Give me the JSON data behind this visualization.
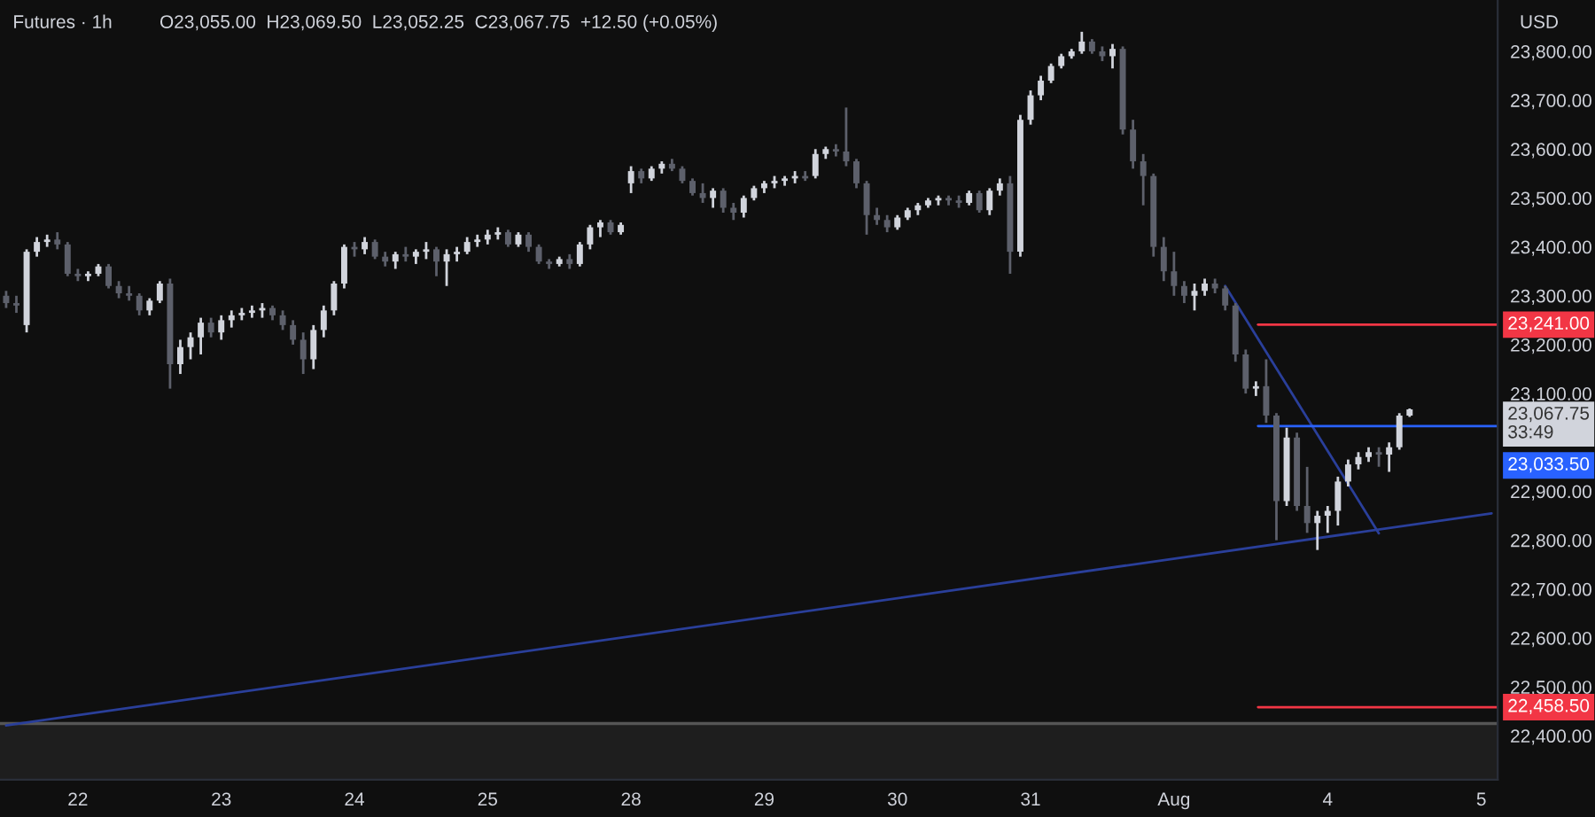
{
  "chart_data": {
    "type": "candlestick",
    "title": "Futures · 1h",
    "annotations": [
      "O23,055.00  H23,069.50  L23,052.25  C23,067.75  +12.50 (+0.05%)",
      "USD",
      "23,067.75",
      "33:49"
    ],
    "categories": [
      null,
      null,
      null,
      null,
      null,
      null,
      null,
      "22",
      null,
      null,
      null,
      null,
      null,
      null,
      null,
      null,
      null,
      null,
      null,
      null,
      null,
      "23",
      null,
      null,
      null,
      null,
      null,
      null,
      null,
      null,
      null,
      null,
      null,
      null,
      "24",
      null,
      null,
      null,
      null,
      null,
      null,
      null,
      null,
      null,
      null,
      null,
      null,
      "25",
      null,
      null,
      null,
      null,
      null,
      null,
      null,
      null,
      null,
      null,
      null,
      null,
      null,
      "28",
      null,
      null,
      null,
      null,
      null,
      null,
      null,
      null,
      null,
      null,
      null,
      null,
      "29",
      null,
      null,
      null,
      null,
      null,
      null,
      null,
      null,
      null,
      null,
      null,
      null,
      "30",
      null,
      null,
      null,
      null,
      null,
      null,
      null,
      null,
      null,
      null,
      null,
      null,
      "31",
      null,
      null,
      null,
      null,
      null,
      null,
      null,
      null,
      null,
      null,
      null,
      null,
      null,
      "Aug",
      null,
      null,
      null,
      null,
      null,
      null,
      null,
      null,
      null,
      null,
      null,
      null,
      null,
      null,
      "4",
      null,
      null,
      null,
      null,
      null,
      null,
      null,
      null,
      null,
      null,
      null,
      null,
      null,
      null,
      "5",
      null
    ],
    "ohlc": [
      [
        23300,
        23310,
        23275,
        23285
      ],
      [
        23285,
        23300,
        23265,
        23280
      ],
      [
        23240,
        23395,
        23225,
        23390
      ],
      [
        23390,
        23420,
        23380,
        23410
      ],
      [
        23410,
        23425,
        23400,
        23415
      ],
      [
        23415,
        23430,
        23395,
        23405
      ],
      [
        23405,
        23410,
        23340,
        23345
      ],
      [
        23345,
        23355,
        23330,
        23340
      ],
      [
        23340,
        23350,
        23330,
        23345
      ],
      [
        23345,
        23365,
        23340,
        23360
      ],
      [
        23360,
        23365,
        23315,
        23320
      ],
      [
        23320,
        23330,
        23295,
        23305
      ],
      [
        23305,
        23320,
        23290,
        23300
      ],
      [
        23300,
        23305,
        23260,
        23270
      ],
      [
        23270,
        23295,
        23260,
        23290
      ],
      [
        23290,
        23330,
        23285,
        23325
      ],
      [
        23325,
        23335,
        23110,
        23160
      ],
      [
        23160,
        23210,
        23140,
        23195
      ],
      [
        23195,
        23225,
        23170,
        23215
      ],
      [
        23215,
        23255,
        23180,
        23245
      ],
      [
        23245,
        23255,
        23215,
        23225
      ],
      [
        23225,
        23260,
        23210,
        23250
      ],
      [
        23250,
        23270,
        23235,
        23260
      ],
      [
        23260,
        23275,
        23250,
        23265
      ],
      [
        23265,
        23280,
        23255,
        23270
      ],
      [
        23270,
        23285,
        23255,
        23275
      ],
      [
        23275,
        23280,
        23250,
        23260
      ],
      [
        23260,
        23270,
        23230,
        23240
      ],
      [
        23240,
        23250,
        23200,
        23210
      ],
      [
        23210,
        23225,
        23140,
        23170
      ],
      [
        23170,
        23240,
        23150,
        23230
      ],
      [
        23230,
        23280,
        23215,
        23270
      ],
      [
        23270,
        23330,
        23260,
        23325
      ],
      [
        23325,
        23405,
        23315,
        23400
      ],
      [
        23400,
        23410,
        23380,
        23395
      ],
      [
        23395,
        23420,
        23385,
        23410
      ],
      [
        23410,
        23415,
        23375,
        23380
      ],
      [
        23380,
        23390,
        23360,
        23370
      ],
      [
        23370,
        23390,
        23355,
        23385
      ],
      [
        23385,
        23400,
        23370,
        23380
      ],
      [
        23380,
        23395,
        23365,
        23390
      ],
      [
        23390,
        23410,
        23375,
        23395
      ],
      [
        23395,
        23400,
        23340,
        23370
      ],
      [
        23370,
        23395,
        23320,
        23385
      ],
      [
        23385,
        23400,
        23370,
        23390
      ],
      [
        23390,
        23420,
        23385,
        23410
      ],
      [
        23410,
        23425,
        23400,
        23415
      ],
      [
        23415,
        23435,
        23405,
        23425
      ],
      [
        23425,
        23440,
        23415,
        23430
      ],
      [
        23430,
        23435,
        23400,
        23405
      ],
      [
        23405,
        23430,
        23400,
        23425
      ],
      [
        23425,
        23430,
        23390,
        23400
      ],
      [
        23400,
        23405,
        23365,
        23370
      ],
      [
        23370,
        23375,
        23355,
        23365
      ],
      [
        23365,
        23380,
        23360,
        23375
      ],
      [
        23375,
        23385,
        23355,
        23365
      ],
      [
        23365,
        23410,
        23360,
        23405
      ],
      [
        23405,
        23445,
        23395,
        23440
      ],
      [
        23440,
        23455,
        23420,
        23450
      ],
      [
        23450,
        23455,
        23425,
        23430
      ],
      [
        23430,
        23450,
        23425,
        23445
      ],
      [
        23530,
        23565,
        23510,
        23555
      ],
      [
        23555,
        23560,
        23530,
        23540
      ],
      [
        23540,
        23565,
        23535,
        23560
      ],
      [
        23560,
        23575,
        23550,
        23570
      ],
      [
        23570,
        23580,
        23555,
        23560
      ],
      [
        23560,
        23565,
        23530,
        23535
      ],
      [
        23535,
        23540,
        23505,
        23510
      ],
      [
        23510,
        23530,
        23490,
        23500
      ],
      [
        23500,
        23520,
        23480,
        23515
      ],
      [
        23515,
        23520,
        23470,
        23480
      ],
      [
        23480,
        23490,
        23455,
        23470
      ],
      [
        23470,
        23505,
        23460,
        23500
      ],
      [
        23500,
        23525,
        23495,
        23520
      ],
      [
        23520,
        23535,
        23510,
        23530
      ],
      [
        23530,
        23545,
        23520,
        23535
      ],
      [
        23535,
        23545,
        23525,
        23540
      ],
      [
        23540,
        23555,
        23530,
        23545
      ],
      [
        23545,
        23555,
        23535,
        23540
      ],
      [
        23545,
        23600,
        23540,
        23590
      ],
      [
        23590,
        23605,
        23580,
        23600
      ],
      [
        23600,
        23610,
        23585,
        23595
      ],
      [
        23595,
        23685,
        23565,
        23575
      ],
      [
        23575,
        23580,
        23520,
        23530
      ],
      [
        23530,
        23535,
        23425,
        23465
      ],
      [
        23465,
        23480,
        23445,
        23455
      ],
      [
        23455,
        23465,
        23430,
        23440
      ],
      [
        23440,
        23465,
        23435,
        23460
      ],
      [
        23460,
        23480,
        23455,
        23475
      ],
      [
        23475,
        23490,
        23465,
        23485
      ],
      [
        23485,
        23500,
        23480,
        23495
      ],
      [
        23495,
        23505,
        23485,
        23500
      ],
      [
        23500,
        23505,
        23485,
        23495
      ],
      [
        23495,
        23505,
        23480,
        23490
      ],
      [
        23490,
        23515,
        23485,
        23510
      ],
      [
        23510,
        23515,
        23470,
        23475
      ],
      [
        23475,
        23520,
        23465,
        23515
      ],
      [
        23515,
        23540,
        23505,
        23530
      ],
      [
        23530,
        23545,
        23345,
        23390
      ],
      [
        23390,
        23670,
        23380,
        23660
      ],
      [
        23660,
        23720,
        23650,
        23710
      ],
      [
        23710,
        23750,
        23700,
        23740
      ],
      [
        23740,
        23775,
        23735,
        23770
      ],
      [
        23770,
        23795,
        23765,
        23790
      ],
      [
        23790,
        23805,
        23785,
        23800
      ],
      [
        23800,
        23840,
        23795,
        23820
      ],
      [
        23820,
        23825,
        23795,
        23800
      ],
      [
        23800,
        23810,
        23780,
        23790
      ],
      [
        23790,
        23815,
        23765,
        23805
      ],
      [
        23805,
        23810,
        23630,
        23640
      ],
      [
        23640,
        23660,
        23560,
        23575
      ],
      [
        23575,
        23590,
        23485,
        23545
      ],
      [
        23545,
        23550,
        23380,
        23400
      ],
      [
        23400,
        23420,
        23330,
        23350
      ],
      [
        23350,
        23390,
        23300,
        23320
      ],
      [
        23320,
        23330,
        23285,
        23300
      ],
      [
        23300,
        23325,
        23270,
        23310
      ],
      [
        23310,
        23335,
        23300,
        23325
      ],
      [
        23325,
        23335,
        23305,
        23315
      ],
      [
        23315,
        23320,
        23270,
        23280
      ],
      [
        23280,
        23285,
        23165,
        23180
      ],
      [
        23180,
        23190,
        23100,
        23110
      ],
      [
        23110,
        23125,
        23095,
        23115
      ],
      [
        23115,
        23170,
        23040,
        23055
      ],
      [
        23055,
        23060,
        22800,
        22880
      ],
      [
        22880,
        23030,
        22870,
        23010
      ],
      [
        23010,
        23020,
        22860,
        22870
      ],
      [
        22870,
        22950,
        22815,
        22835
      ],
      [
        22835,
        22860,
        22780,
        22850
      ],
      [
        22850,
        22870,
        22815,
        22860
      ],
      [
        22860,
        22930,
        22830,
        22920
      ],
      [
        22920,
        22965,
        22910,
        22955
      ],
      [
        22955,
        22980,
        22945,
        22970
      ],
      [
        22970,
        22990,
        22960,
        22980
      ],
      [
        22980,
        22990,
        22950,
        22975
      ],
      [
        22975,
        23000,
        22940,
        22990
      ],
      [
        22990,
        23060,
        22985,
        23055
      ],
      [
        23055,
        23069.5,
        23052.25,
        23067.75
      ],
      null,
      null,
      null,
      null,
      null,
      null,
      null,
      null
    ],
    "series": [
      {
        "type": "line",
        "color": "#2a3f9a",
        "values": [
          22421,
          null,
          null,
          null,
          null,
          null,
          null,
          null,
          null,
          null,
          null,
          null,
          null,
          null,
          null,
          null,
          null,
          null,
          null,
          null,
          null,
          null,
          null,
          null,
          null,
          null,
          null,
          null,
          null,
          null,
          null,
          null,
          null,
          null,
          null,
          null,
          null,
          null,
          null,
          null,
          null,
          null,
          null,
          null,
          null,
          null,
          null,
          null,
          null,
          null,
          null,
          null,
          null,
          null,
          null,
          null,
          null,
          null,
          null,
          null,
          null,
          null,
          null,
          null,
          null,
          null,
          null,
          null,
          null,
          null,
          null,
          null,
          null,
          null,
          null,
          null,
          null,
          null,
          null,
          null,
          null,
          null,
          null,
          null,
          null,
          null,
          null,
          null,
          null,
          null,
          null,
          null,
          null,
          null,
          null,
          null,
          null,
          null,
          null,
          null,
          null,
          null,
          null,
          null,
          null,
          null,
          null,
          null,
          null,
          null,
          null,
          null,
          null,
          null,
          null,
          null,
          null,
          null,
          null,
          null,
          null,
          null,
          null,
          null,
          null,
          null,
          null,
          null,
          null,
          null,
          null,
          null,
          null,
          null,
          null,
          null,
          null,
          null,
          null,
          null,
          null,
          null,
          null,
          null,
          null,
          22855
        ]
      },
      {
        "type": "line",
        "color": "#2a3f9a",
        "values": [
          null,
          null,
          null,
          null,
          null,
          null,
          null,
          null,
          null,
          null,
          null,
          null,
          null,
          null,
          null,
          null,
          null,
          null,
          null,
          null,
          null,
          null,
          null,
          null,
          null,
          null,
          null,
          null,
          null,
          null,
          null,
          null,
          null,
          null,
          null,
          null,
          null,
          null,
          null,
          null,
          null,
          null,
          null,
          null,
          null,
          null,
          null,
          null,
          null,
          null,
          null,
          null,
          null,
          null,
          null,
          null,
          null,
          null,
          null,
          null,
          null,
          null,
          null,
          null,
          null,
          null,
          null,
          null,
          null,
          null,
          null,
          null,
          null,
          null,
          null,
          null,
          null,
          null,
          null,
          null,
          null,
          null,
          null,
          null,
          null,
          null,
          null,
          null,
          null,
          null,
          null,
          null,
          null,
          null,
          null,
          null,
          null,
          null,
          null,
          null,
          null,
          null,
          null,
          null,
          null,
          null,
          null,
          null,
          null,
          null,
          null,
          null,
          null,
          null,
          null,
          null,
          null,
          null,
          null,
          23320,
          null,
          null,
          null,
          null,
          null,
          null,
          null,
          null,
          null,
          null,
          null,
          null,
          null,
          null,
          22814,
          null,
          null,
          null,
          null,
          null,
          null,
          null,
          null,
          null,
          null,
          null
        ]
      }
    ],
    "ref_lines": [
      {
        "axis": "y",
        "value": 23241,
        "label": "23,241.00",
        "color": "#f23645"
      },
      {
        "axis": "y",
        "value": 23033.5,
        "label": "23,033.50",
        "color": "#2962ff"
      },
      {
        "axis": "y",
        "value": 22458.5,
        "label": "22,458.50",
        "color": "#f23645"
      },
      {
        "axis": "y",
        "value": 22425,
        "color": "#555555"
      }
    ],
    "bands": [
      {
        "axis": "y",
        "from": 22310,
        "to": 22425,
        "color": "#1e1e1e"
      }
    ],
    "ylim": [
      22310,
      23905
    ],
    "yticks": [
      {
        "value": 22400,
        "label": "22,400.00"
      },
      {
        "value": 22500,
        "label": "22,500.00"
      },
      {
        "value": 22600,
        "label": "22,600.00"
      },
      {
        "value": 22700,
        "label": "22,700.00"
      },
      {
        "value": 22800,
        "label": "22,800.00"
      },
      {
        "value": 22900,
        "label": "22,900.00"
      },
      {
        "value": 23100,
        "label": "23,100.00"
      },
      {
        "value": 23200,
        "label": "23,200.00"
      },
      {
        "value": 23300,
        "label": "23,300.00"
      },
      {
        "value": 23400,
        "label": "23,400.00"
      },
      {
        "value": 23500,
        "label": "23,500.00"
      },
      {
        "value": 23600,
        "label": "23,600.00"
      },
      {
        "value": 23700,
        "label": "23,700.00"
      },
      {
        "value": 23800,
        "label": "23,800.00"
      }
    ],
    "grid": false
  }
}
